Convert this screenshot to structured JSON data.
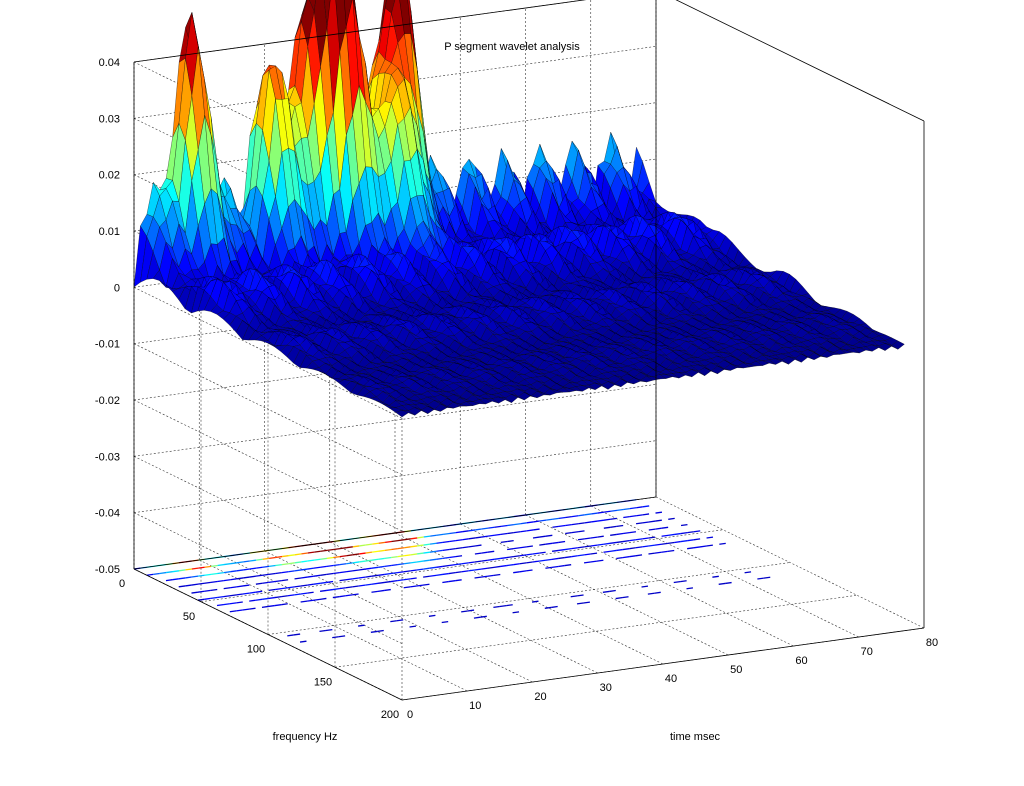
{
  "chart_data": {
    "type": "surface",
    "title": "P segment wavelet analysis",
    "xlabel": "frequency Hz",
    "ylabel": "time msec",
    "zlabel": "",
    "xlim": [
      0,
      200
    ],
    "ylim": [
      0,
      80
    ],
    "zlim": [
      -0.05,
      0.04
    ],
    "xticks": [
      0,
      50,
      100,
      150,
      200
    ],
    "xtick_labels": [
      "0",
      "50",
      "100",
      "150",
      "200"
    ],
    "yticks": [
      0,
      10,
      20,
      30,
      40,
      50,
      60,
      70,
      80
    ],
    "ytick_labels": [
      "0",
      "10",
      "20",
      "30",
      "40",
      "50",
      "60",
      "70",
      "80"
    ],
    "zticks": [
      0.04,
      0.03,
      0.02,
      0.01,
      0,
      -0.01,
      -0.02,
      -0.03,
      -0.04,
      -0.05
    ],
    "ztick_labels": [
      "0.04",
      "0.03",
      "0.02",
      "0.01",
      "0",
      "-0.01",
      "-0.02",
      "-0.03",
      "-0.04",
      "-0.05"
    ],
    "grid": true,
    "colormap": "jet",
    "contour_plane_z": -0.05,
    "peaks": [
      {
        "frequency_hz": 5,
        "time_msec": 8,
        "value": 0.034
      },
      {
        "frequency_hz": 5,
        "time_msec": 27,
        "value": 0.043
      },
      {
        "frequency_hz": 15,
        "time_msec": 30,
        "value": 0.037
      },
      {
        "frequency_hz": 5,
        "time_msec": 39,
        "value": 0.045
      },
      {
        "frequency_hz": 25,
        "time_msec": 36,
        "value": 0.026
      },
      {
        "frequency_hz": 10,
        "time_msec": 20,
        "value": 0.029
      }
    ]
  }
}
